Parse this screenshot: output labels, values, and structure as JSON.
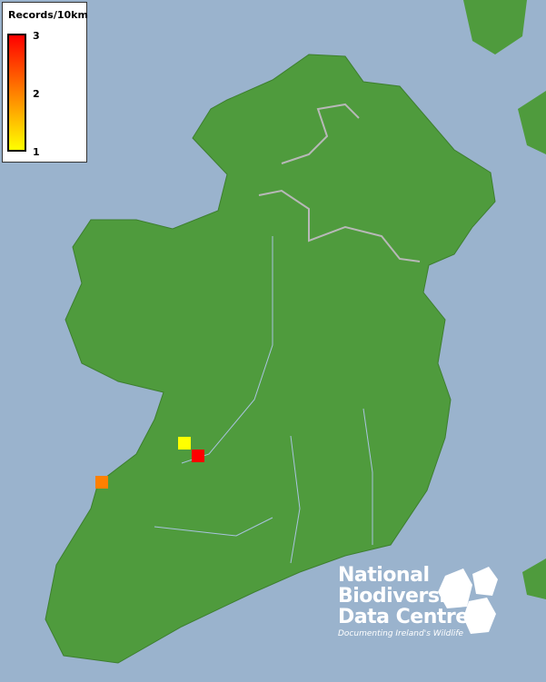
{
  "legend": {
    "title": "Records/10km",
    "ticks": [
      "3",
      "2",
      "1"
    ],
    "scale_colors": [
      "#ff0000",
      "#ff8000",
      "#ffff00"
    ]
  },
  "records": [
    {
      "value": 1,
      "color": "#ffff00"
    },
    {
      "value": 3,
      "color": "#ff0000"
    },
    {
      "value": 2,
      "color": "#ff8000"
    }
  ],
  "logo": {
    "line1": "National",
    "line2": "Biodiversity",
    "line3": "Data Centre",
    "tagline": "Documenting Ireland's Wildlife"
  },
  "colors": {
    "sea": "#9ab3cd",
    "land": "#4e9a3c"
  }
}
